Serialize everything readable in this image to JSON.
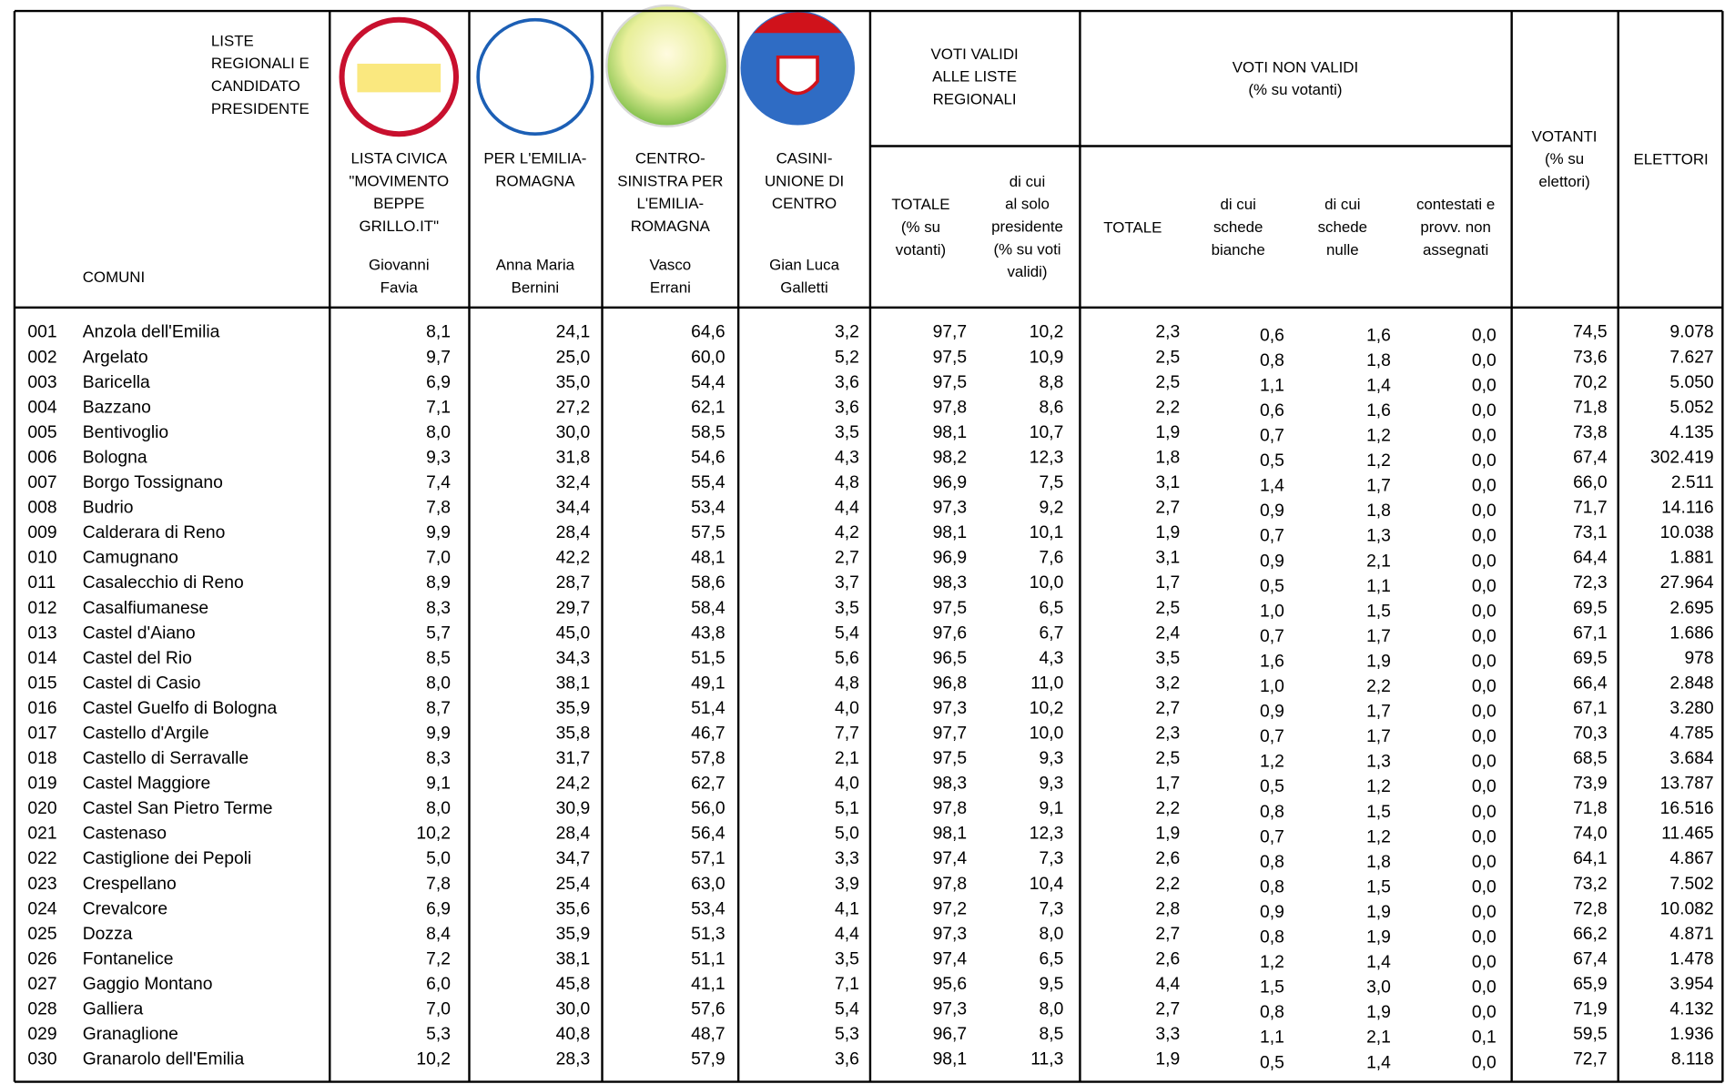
{
  "header": {
    "lists_label": [
      "LISTE",
      "REGIONALI E",
      "CANDIDATO",
      "PRESIDENTE"
    ],
    "comuni_label": "COMUNI",
    "lists": [
      {
        "name": [
          "LISTA CIVICA",
          "\"MOVIMENTO",
          "BEPPE",
          "GRILLO.IT\""
        ],
        "candidate": [
          "Giovanni",
          "Favia"
        ]
      },
      {
        "name": [
          "PER L'EMILIA-",
          "ROMAGNA"
        ],
        "candidate": [
          "Anna Maria",
          "Bernini"
        ]
      },
      {
        "name": [
          "CENTRO-",
          "SINISTRA PER",
          "L'EMILIA-",
          "ROMAGNA"
        ],
        "candidate": [
          "Vasco",
          "Errani"
        ]
      },
      {
        "name": [
          "CASINI-",
          "UNIONE DI",
          "CENTRO"
        ],
        "candidate": [
          "Gian Luca",
          "Galletti"
        ]
      }
    ],
    "voti_validi": {
      "title": [
        "VOTI VALIDI",
        "ALLE LISTE",
        "REGIONALI"
      ],
      "totale": [
        "TOTALE",
        "(% su",
        "votanti)"
      ],
      "solo_presidente": [
        "di cui",
        "al solo",
        "presidente",
        "(% su voti",
        "validi)"
      ]
    },
    "voti_non_validi": {
      "title": [
        "VOTI NON VALIDI",
        "(% su votanti)"
      ],
      "totale": "TOTALE",
      "bianche": [
        "di cui",
        "schede",
        "bianche"
      ],
      "nulle": [
        "di cui",
        "schede",
        "nulle"
      ],
      "contestati": [
        "contestati e",
        "provv. non",
        "assegnati"
      ]
    },
    "votanti": [
      "VOTANTI",
      "(% su",
      "elettori)"
    ],
    "elettori": "ELETTORI"
  },
  "table": {
    "rows": [
      [
        "001",
        "Anzola dell'Emilia",
        "8,1",
        "24,1",
        "64,6",
        "3,2",
        "97,7",
        "10,2",
        "2,3",
        "0,6",
        "1,6",
        "0,0",
        "74,5",
        "9.078"
      ],
      [
        "002",
        "Argelato",
        "9,7",
        "25,0",
        "60,0",
        "5,2",
        "97,5",
        "10,9",
        "2,5",
        "0,8",
        "1,8",
        "0,0",
        "73,6",
        "7.627"
      ],
      [
        "003",
        "Baricella",
        "6,9",
        "35,0",
        "54,4",
        "3,6",
        "97,5",
        "8,8",
        "2,5",
        "1,1",
        "1,4",
        "0,0",
        "70,2",
        "5.050"
      ],
      [
        "004",
        "Bazzano",
        "7,1",
        "27,2",
        "62,1",
        "3,6",
        "97,8",
        "8,6",
        "2,2",
        "0,6",
        "1,6",
        "0,0",
        "71,8",
        "5.052"
      ],
      [
        "005",
        "Bentivoglio",
        "8,0",
        "30,0",
        "58,5",
        "3,5",
        "98,1",
        "10,7",
        "1,9",
        "0,7",
        "1,2",
        "0,0",
        "73,8",
        "4.135"
      ],
      [
        "006",
        "Bologna",
        "9,3",
        "31,8",
        "54,6",
        "4,3",
        "98,2",
        "12,3",
        "1,8",
        "0,5",
        "1,2",
        "0,0",
        "67,4",
        "302.419"
      ],
      [
        "007",
        "Borgo Tossignano",
        "7,4",
        "32,4",
        "55,4",
        "4,8",
        "96,9",
        "7,5",
        "3,1",
        "1,4",
        "1,7",
        "0,0",
        "66,0",
        "2.511"
      ],
      [
        "008",
        "Budrio",
        "7,8",
        "34,4",
        "53,4",
        "4,4",
        "97,3",
        "9,2",
        "2,7",
        "0,9",
        "1,8",
        "0,0",
        "71,7",
        "14.116"
      ],
      [
        "009",
        "Calderara di Reno",
        "9,9",
        "28,4",
        "57,5",
        "4,2",
        "98,1",
        "10,1",
        "1,9",
        "0,7",
        "1,3",
        "0,0",
        "73,1",
        "10.038"
      ],
      [
        "010",
        "Camugnano",
        "7,0",
        "42,2",
        "48,1",
        "2,7",
        "96,9",
        "7,6",
        "3,1",
        "0,9",
        "2,1",
        "0,0",
        "64,4",
        "1.881"
      ],
      [
        "011",
        "Casalecchio di Reno",
        "8,9",
        "28,7",
        "58,6",
        "3,7",
        "98,3",
        "10,0",
        "1,7",
        "0,5",
        "1,1",
        "0,0",
        "72,3",
        "27.964"
      ],
      [
        "012",
        "Casalfiumanese",
        "8,3",
        "29,7",
        "58,4",
        "3,5",
        "97,5",
        "6,5",
        "2,5",
        "1,0",
        "1,5",
        "0,0",
        "69,5",
        "2.695"
      ],
      [
        "013",
        "Castel d'Aiano",
        "5,7",
        "45,0",
        "43,8",
        "5,4",
        "97,6",
        "6,7",
        "2,4",
        "0,7",
        "1,7",
        "0,0",
        "67,1",
        "1.686"
      ],
      [
        "014",
        "Castel del Rio",
        "8,5",
        "34,3",
        "51,5",
        "5,6",
        "96,5",
        "4,3",
        "3,5",
        "1,6",
        "1,9",
        "0,0",
        "69,5",
        "978"
      ],
      [
        "015",
        "Castel di Casio",
        "8,0",
        "38,1",
        "49,1",
        "4,8",
        "96,8",
        "11,0",
        "3,2",
        "1,0",
        "2,2",
        "0,0",
        "66,4",
        "2.848"
      ],
      [
        "016",
        "Castel Guelfo di Bologna",
        "8,7",
        "35,9",
        "51,4",
        "4,0",
        "97,3",
        "10,2",
        "2,7",
        "0,9",
        "1,7",
        "0,0",
        "67,1",
        "3.280"
      ],
      [
        "017",
        "Castello d'Argile",
        "9,9",
        "35,8",
        "46,7",
        "7,7",
        "97,7",
        "10,0",
        "2,3",
        "0,7",
        "1,7",
        "0,0",
        "70,3",
        "4.785"
      ],
      [
        "018",
        "Castello di Serravalle",
        "8,3",
        "31,7",
        "57,8",
        "2,1",
        "97,5",
        "9,3",
        "2,5",
        "1,2",
        "1,3",
        "0,0",
        "68,5",
        "3.684"
      ],
      [
        "019",
        "Castel Maggiore",
        "9,1",
        "24,2",
        "62,7",
        "4,0",
        "98,3",
        "9,3",
        "1,7",
        "0,5",
        "1,2",
        "0,0",
        "73,9",
        "13.787"
      ],
      [
        "020",
        "Castel San Pietro Terme",
        "8,0",
        "30,9",
        "56,0",
        "5,1",
        "97,8",
        "9,1",
        "2,2",
        "0,8",
        "1,5",
        "0,0",
        "71,8",
        "16.516"
      ],
      [
        "021",
        "Castenaso",
        "10,2",
        "28,4",
        "56,4",
        "5,0",
        "98,1",
        "12,3",
        "1,9",
        "0,7",
        "1,2",
        "0,0",
        "74,0",
        "11.465"
      ],
      [
        "022",
        "Castiglione dei Pepoli",
        "5,0",
        "34,7",
        "57,1",
        "3,3",
        "97,4",
        "7,3",
        "2,6",
        "0,8",
        "1,8",
        "0,0",
        "64,1",
        "4.867"
      ],
      [
        "023",
        "Crespellano",
        "7,8",
        "25,4",
        "63,0",
        "3,9",
        "97,8",
        "10,4",
        "2,2",
        "0,8",
        "1,5",
        "0,0",
        "73,2",
        "7.502"
      ],
      [
        "024",
        "Crevalcore",
        "6,9",
        "35,6",
        "53,4",
        "4,1",
        "97,2",
        "7,3",
        "2,8",
        "0,9",
        "1,9",
        "0,0",
        "72,8",
        "10.082"
      ],
      [
        "025",
        "Dozza",
        "8,4",
        "35,9",
        "51,3",
        "4,4",
        "97,3",
        "8,0",
        "2,7",
        "0,8",
        "1,9",
        "0,0",
        "66,2",
        "4.871"
      ],
      [
        "026",
        "Fontanelice",
        "7,2",
        "38,1",
        "51,1",
        "3,5",
        "97,4",
        "6,5",
        "2,6",
        "1,2",
        "1,4",
        "0,0",
        "67,4",
        "1.478"
      ],
      [
        "027",
        "Gaggio Montano",
        "6,0",
        "45,8",
        "41,1",
        "7,1",
        "95,6",
        "9,5",
        "4,4",
        "1,5",
        "3,0",
        "0,0",
        "65,9",
        "3.954"
      ],
      [
        "028",
        "Galliera",
        "7,0",
        "30,0",
        "57,6",
        "5,4",
        "97,3",
        "8,0",
        "2,7",
        "0,8",
        "1,9",
        "0,0",
        "71,9",
        "4.132"
      ],
      [
        "029",
        "Granaglione",
        "5,3",
        "40,8",
        "48,7",
        "5,3",
        "96,7",
        "8,5",
        "3,3",
        "1,1",
        "2,1",
        "0,1",
        "59,5",
        "1.936"
      ],
      [
        "030",
        "Granarolo dell'Emilia",
        "10,2",
        "28,3",
        "57,9",
        "3,6",
        "98,1",
        "11,3",
        "1,9",
        "0,5",
        "1,4",
        "0,0",
        "72,7",
        "8.118"
      ]
    ]
  }
}
